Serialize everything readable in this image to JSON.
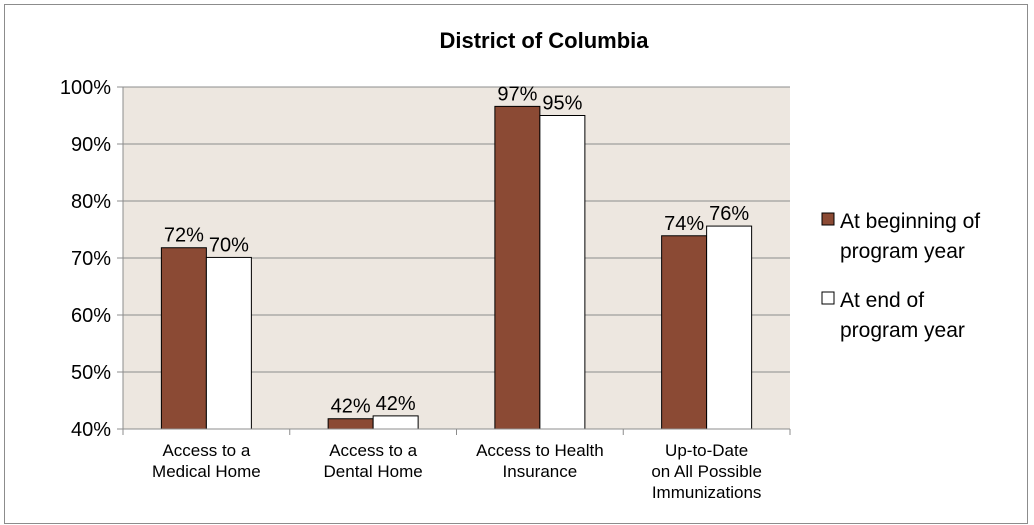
{
  "chart_data": {
    "type": "bar",
    "title": "District of Columbia",
    "xlabel": "",
    "ylabel": "",
    "ylim": [
      40,
      100
    ],
    "yticks": [
      40,
      50,
      60,
      70,
      80,
      90,
      100
    ],
    "ytick_suffix": "%",
    "grid": true,
    "legend_position": "right",
    "categories": [
      [
        "Access to a",
        "Medical Home"
      ],
      [
        "Access to a",
        "Dental Home"
      ],
      [
        "Access to Health",
        "Insurance"
      ],
      [
        "Up-to-Date",
        "on All Possible",
        "Immunizations"
      ]
    ],
    "series": [
      {
        "name": [
          "At beginning of",
          "program year"
        ],
        "values": [
          72,
          42,
          97,
          74
        ],
        "true_values": [
          71.8,
          41.8,
          96.6,
          73.9
        ],
        "labels": [
          "72%",
          "42%",
          "97%",
          "74%"
        ],
        "color": "#8b4a34"
      },
      {
        "name": [
          "At end of",
          "program year"
        ],
        "values": [
          70,
          42,
          95,
          76
        ],
        "true_values": [
          70.1,
          42.3,
          95.0,
          75.6
        ],
        "labels": [
          "70%",
          "42%",
          "95%",
          "76%"
        ],
        "color": "#ffffff"
      }
    ],
    "plot_background": "#ede7e0"
  }
}
